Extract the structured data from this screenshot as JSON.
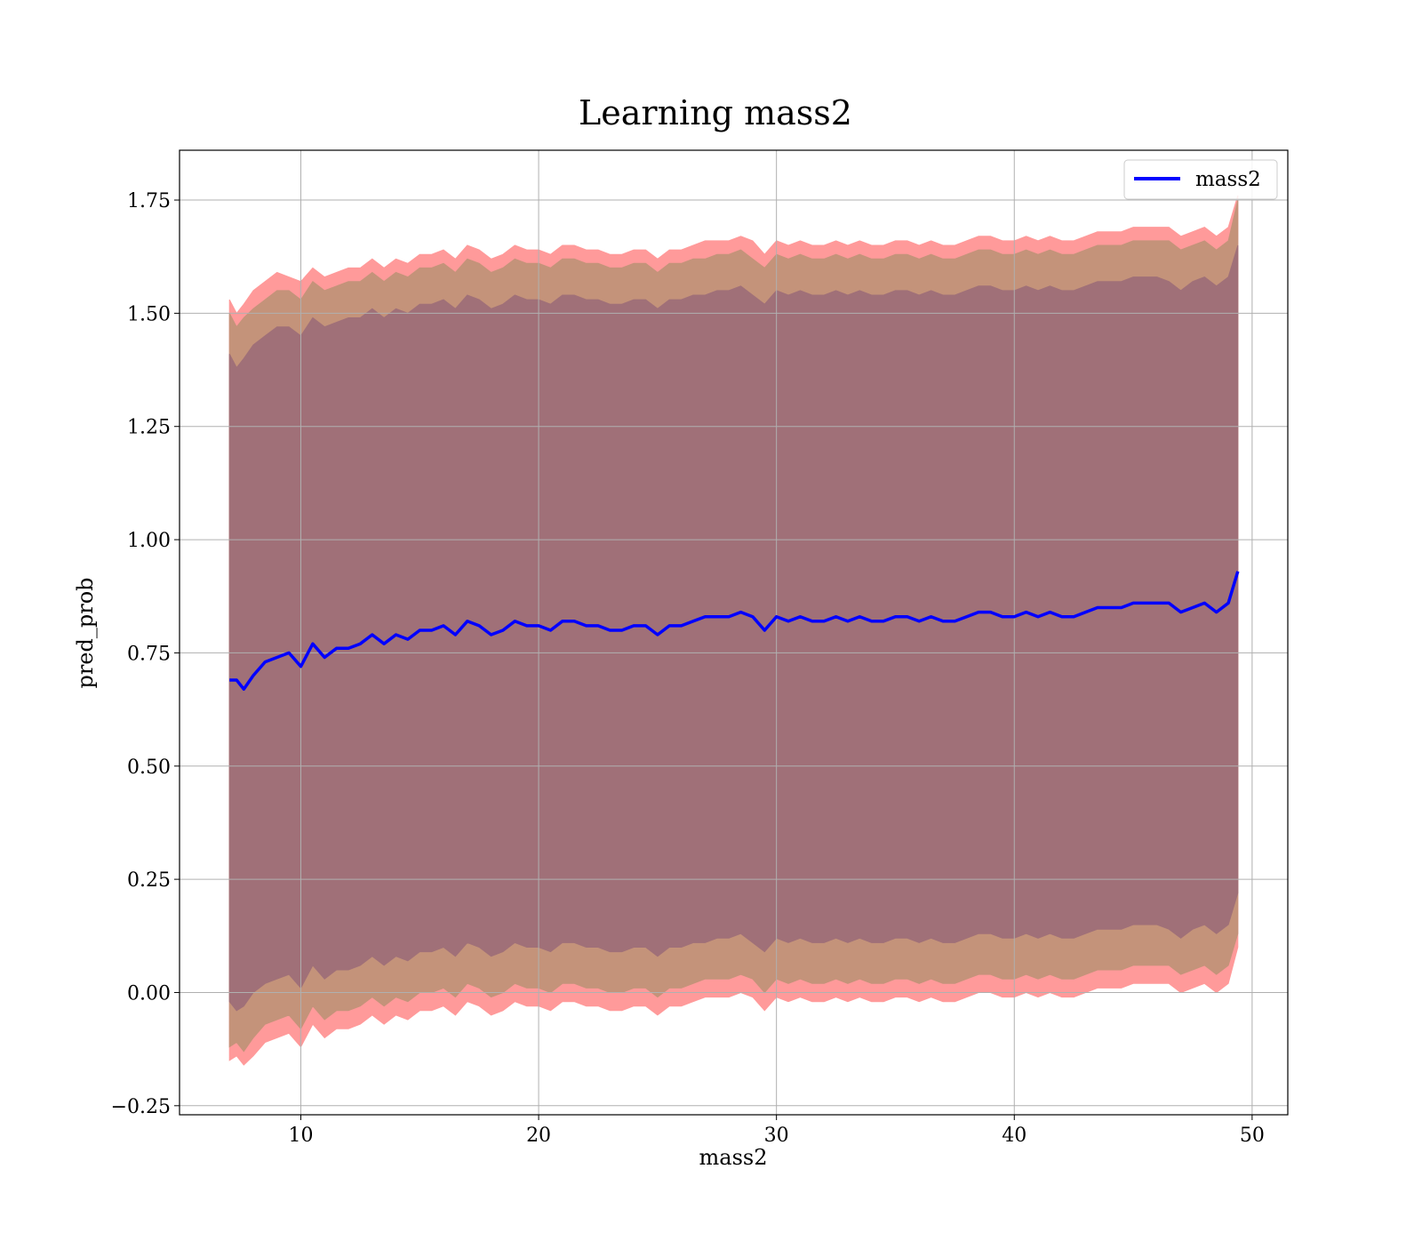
{
  "chart_data": {
    "type": "area",
    "title": "Learning mass2",
    "xlabel": "mass2",
    "ylabel": "pred_prob",
    "xlim": [
      4.9,
      51.5
    ],
    "ylim": [
      -0.27,
      1.86
    ],
    "xticks": [
      10,
      20,
      30,
      40,
      50
    ],
    "yticks": [
      -0.25,
      0.0,
      0.25,
      0.5,
      0.75,
      1.0,
      1.25,
      1.5,
      1.75
    ],
    "ytick_labels": [
      "−0.25",
      "0.00",
      "0.25",
      "0.50",
      "0.75",
      "1.00",
      "1.25",
      "1.50",
      "1.75"
    ],
    "grid": true,
    "legend": {
      "position": "top-right",
      "entries": [
        "mass2"
      ]
    },
    "colors": {
      "mean_line": "#0000ff",
      "band_outer": "#ff9a9a",
      "band_middle": "#c4937a",
      "band_inner": "#a07078",
      "grid": "#b0b0b0"
    },
    "x": [
      7.0,
      7.3,
      7.6,
      8.0,
      8.5,
      9.0,
      9.5,
      10.0,
      10.5,
      11.0,
      11.5,
      12.0,
      12.5,
      13.0,
      13.5,
      14.0,
      14.5,
      15.0,
      15.5,
      16.0,
      16.5,
      17.0,
      17.5,
      18.0,
      18.5,
      19.0,
      19.5,
      20.0,
      20.5,
      21.0,
      21.5,
      22.0,
      22.5,
      23.0,
      23.5,
      24.0,
      24.5,
      25.0,
      25.5,
      26.0,
      26.5,
      27.0,
      27.5,
      28.0,
      28.5,
      29.0,
      29.5,
      30.0,
      30.5,
      31.0,
      31.5,
      32.0,
      32.5,
      33.0,
      33.5,
      34.0,
      34.5,
      35.0,
      35.5,
      36.0,
      36.5,
      37.0,
      37.5,
      38.0,
      38.5,
      39.0,
      39.5,
      40.0,
      40.5,
      41.0,
      41.5,
      42.0,
      42.5,
      43.0,
      43.5,
      44.0,
      44.5,
      45.0,
      45.5,
      46.0,
      46.5,
      47.0,
      47.5,
      48.0,
      48.5,
      49.0,
      49.4
    ],
    "series": [
      {
        "name": "mass2",
        "values": [
          0.69,
          0.69,
          0.67,
          0.7,
          0.73,
          0.74,
          0.75,
          0.72,
          0.77,
          0.74,
          0.76,
          0.76,
          0.77,
          0.79,
          0.77,
          0.79,
          0.78,
          0.8,
          0.8,
          0.81,
          0.79,
          0.82,
          0.81,
          0.79,
          0.8,
          0.82,
          0.81,
          0.81,
          0.8,
          0.82,
          0.82,
          0.81,
          0.81,
          0.8,
          0.8,
          0.81,
          0.81,
          0.79,
          0.81,
          0.81,
          0.82,
          0.83,
          0.83,
          0.83,
          0.84,
          0.83,
          0.8,
          0.83,
          0.82,
          0.83,
          0.82,
          0.82,
          0.83,
          0.82,
          0.83,
          0.82,
          0.82,
          0.83,
          0.83,
          0.82,
          0.83,
          0.82,
          0.82,
          0.83,
          0.84,
          0.84,
          0.83,
          0.83,
          0.84,
          0.83,
          0.84,
          0.83,
          0.83,
          0.84,
          0.85,
          0.85,
          0.85,
          0.86,
          0.86,
          0.86,
          0.86,
          0.84,
          0.85,
          0.86,
          0.84,
          0.86,
          0.93
        ]
      }
    ],
    "bands": [
      {
        "upper": [
          1.53,
          1.5,
          1.52,
          1.55,
          1.57,
          1.59,
          1.58,
          1.57,
          1.6,
          1.58,
          1.59,
          1.6,
          1.6,
          1.62,
          1.6,
          1.62,
          1.61,
          1.63,
          1.63,
          1.64,
          1.62,
          1.65,
          1.64,
          1.62,
          1.63,
          1.65,
          1.64,
          1.64,
          1.63,
          1.65,
          1.65,
          1.64,
          1.64,
          1.63,
          1.63,
          1.64,
          1.64,
          1.62,
          1.64,
          1.64,
          1.65,
          1.66,
          1.66,
          1.66,
          1.67,
          1.66,
          1.63,
          1.66,
          1.65,
          1.66,
          1.65,
          1.65,
          1.66,
          1.65,
          1.66,
          1.65,
          1.65,
          1.66,
          1.66,
          1.65,
          1.66,
          1.65,
          1.65,
          1.66,
          1.67,
          1.67,
          1.66,
          1.66,
          1.67,
          1.66,
          1.67,
          1.66,
          1.66,
          1.67,
          1.68,
          1.68,
          1.68,
          1.69,
          1.69,
          1.69,
          1.69,
          1.67,
          1.68,
          1.69,
          1.67,
          1.69,
          1.76
        ],
        "lower": [
          -0.15,
          -0.14,
          -0.16,
          -0.14,
          -0.11,
          -0.1,
          -0.09,
          -0.12,
          -0.07,
          -0.1,
          -0.08,
          -0.08,
          -0.07,
          -0.05,
          -0.07,
          -0.05,
          -0.06,
          -0.04,
          -0.04,
          -0.03,
          -0.05,
          -0.02,
          -0.03,
          -0.05,
          -0.04,
          -0.02,
          -0.03,
          -0.03,
          -0.04,
          -0.02,
          -0.02,
          -0.03,
          -0.03,
          -0.04,
          -0.04,
          -0.03,
          -0.03,
          -0.05,
          -0.03,
          -0.03,
          -0.02,
          -0.01,
          -0.01,
          -0.01,
          0.0,
          -0.01,
          -0.04,
          -0.01,
          -0.02,
          -0.01,
          -0.02,
          -0.02,
          -0.01,
          -0.02,
          -0.01,
          -0.02,
          -0.02,
          -0.01,
          -0.01,
          -0.02,
          -0.01,
          -0.02,
          -0.02,
          -0.01,
          0.0,
          0.0,
          -0.01,
          -0.01,
          0.0,
          -0.01,
          0.0,
          -0.01,
          -0.01,
          0.0,
          0.01,
          0.01,
          0.01,
          0.02,
          0.02,
          0.02,
          0.02,
          0.0,
          0.01,
          0.02,
          0.0,
          0.02,
          0.1
        ]
      },
      {
        "upper": [
          1.5,
          1.47,
          1.49,
          1.51,
          1.53,
          1.55,
          1.55,
          1.53,
          1.57,
          1.55,
          1.56,
          1.57,
          1.57,
          1.59,
          1.57,
          1.59,
          1.58,
          1.6,
          1.6,
          1.61,
          1.59,
          1.62,
          1.61,
          1.59,
          1.6,
          1.62,
          1.61,
          1.61,
          1.6,
          1.62,
          1.62,
          1.61,
          1.61,
          1.6,
          1.6,
          1.61,
          1.61,
          1.59,
          1.61,
          1.61,
          1.62,
          1.62,
          1.63,
          1.63,
          1.64,
          1.62,
          1.6,
          1.63,
          1.62,
          1.63,
          1.62,
          1.62,
          1.63,
          1.62,
          1.63,
          1.62,
          1.62,
          1.63,
          1.63,
          1.62,
          1.63,
          1.62,
          1.62,
          1.63,
          1.64,
          1.64,
          1.63,
          1.63,
          1.64,
          1.63,
          1.64,
          1.63,
          1.63,
          1.64,
          1.65,
          1.65,
          1.65,
          1.66,
          1.66,
          1.66,
          1.66,
          1.64,
          1.65,
          1.66,
          1.64,
          1.66,
          1.75
        ],
        "lower": [
          -0.12,
          -0.11,
          -0.13,
          -0.1,
          -0.07,
          -0.06,
          -0.05,
          -0.08,
          -0.03,
          -0.06,
          -0.04,
          -0.04,
          -0.03,
          -0.01,
          -0.03,
          -0.01,
          -0.02,
          0.0,
          0.0,
          0.01,
          -0.01,
          0.02,
          0.01,
          -0.01,
          0.0,
          0.02,
          0.01,
          0.01,
          0.0,
          0.02,
          0.02,
          0.01,
          0.01,
          0.0,
          0.0,
          0.01,
          0.01,
          -0.01,
          0.01,
          0.01,
          0.02,
          0.03,
          0.03,
          0.03,
          0.04,
          0.03,
          0.0,
          0.03,
          0.02,
          0.03,
          0.02,
          0.02,
          0.03,
          0.02,
          0.03,
          0.02,
          0.02,
          0.03,
          0.03,
          0.02,
          0.03,
          0.02,
          0.02,
          0.03,
          0.04,
          0.04,
          0.03,
          0.03,
          0.04,
          0.03,
          0.04,
          0.03,
          0.03,
          0.04,
          0.05,
          0.05,
          0.05,
          0.06,
          0.06,
          0.06,
          0.06,
          0.04,
          0.05,
          0.06,
          0.04,
          0.06,
          0.13
        ]
      },
      {
        "upper": [
          1.41,
          1.38,
          1.4,
          1.43,
          1.45,
          1.47,
          1.47,
          1.45,
          1.49,
          1.47,
          1.48,
          1.49,
          1.49,
          1.51,
          1.49,
          1.51,
          1.5,
          1.52,
          1.52,
          1.53,
          1.51,
          1.54,
          1.53,
          1.51,
          1.52,
          1.54,
          1.53,
          1.53,
          1.52,
          1.54,
          1.54,
          1.53,
          1.53,
          1.52,
          1.52,
          1.53,
          1.53,
          1.51,
          1.53,
          1.53,
          1.54,
          1.54,
          1.55,
          1.55,
          1.56,
          1.54,
          1.52,
          1.55,
          1.54,
          1.55,
          1.54,
          1.54,
          1.55,
          1.54,
          1.55,
          1.54,
          1.54,
          1.55,
          1.55,
          1.54,
          1.55,
          1.54,
          1.54,
          1.55,
          1.56,
          1.56,
          1.55,
          1.55,
          1.56,
          1.55,
          1.56,
          1.55,
          1.55,
          1.56,
          1.57,
          1.57,
          1.57,
          1.58,
          1.58,
          1.58,
          1.57,
          1.55,
          1.57,
          1.58,
          1.56,
          1.58,
          1.65
        ],
        "lower": [
          -0.02,
          -0.04,
          -0.03,
          0.0,
          0.02,
          0.03,
          0.04,
          0.01,
          0.06,
          0.03,
          0.05,
          0.05,
          0.06,
          0.08,
          0.06,
          0.08,
          0.07,
          0.09,
          0.09,
          0.1,
          0.08,
          0.11,
          0.1,
          0.08,
          0.09,
          0.11,
          0.1,
          0.1,
          0.09,
          0.11,
          0.11,
          0.1,
          0.1,
          0.09,
          0.09,
          0.1,
          0.1,
          0.08,
          0.1,
          0.1,
          0.11,
          0.11,
          0.12,
          0.12,
          0.13,
          0.11,
          0.09,
          0.12,
          0.11,
          0.12,
          0.11,
          0.11,
          0.12,
          0.11,
          0.12,
          0.11,
          0.11,
          0.12,
          0.12,
          0.11,
          0.12,
          0.11,
          0.11,
          0.12,
          0.13,
          0.13,
          0.12,
          0.12,
          0.13,
          0.12,
          0.13,
          0.12,
          0.12,
          0.13,
          0.14,
          0.14,
          0.14,
          0.15,
          0.15,
          0.15,
          0.14,
          0.12,
          0.14,
          0.15,
          0.13,
          0.15,
          0.22
        ]
      }
    ]
  }
}
